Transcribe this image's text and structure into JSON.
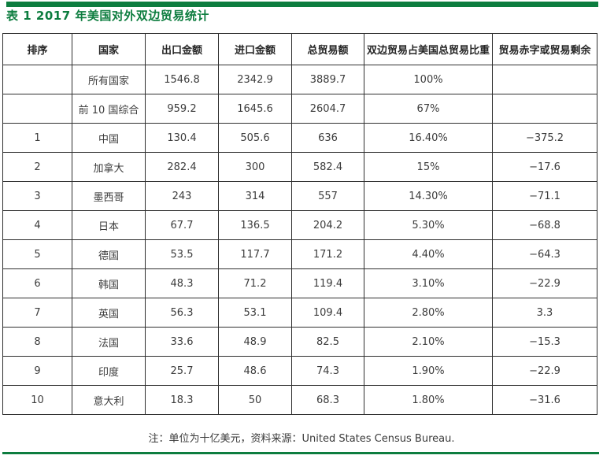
{
  "page": {
    "title": "表 1 2017 年美国对外双边贸易统计",
    "note": "注：单位为十亿美元，资料来源：United States Census Bureau."
  },
  "colors": {
    "accent_green": "#0d7d3f",
    "table_border": "#2f2f2f",
    "body_text": "#3c3c3c"
  },
  "table": {
    "headers": [
      "排序",
      "国家",
      "出口金额",
      "进口金额",
      "总贸易额",
      "双边贸易占美国总贸易比重",
      "贸易赤字或贸易剩余"
    ],
    "rows": [
      {
        "cells": [
          "",
          "所有国家",
          "1546.8",
          "2342.9",
          "3889.7",
          "100%",
          ""
        ]
      },
      {
        "cells": [
          "",
          "前 10 国综合",
          "959.2",
          "1645.6",
          "2604.7",
          "67%",
          ""
        ]
      },
      {
        "cells": [
          "1",
          "中国",
          "130.4",
          "505.6",
          "636",
          "16.40%",
          "−375.2"
        ]
      },
      {
        "cells": [
          "2",
          "加拿大",
          "282.4",
          "300",
          "582.4",
          "15%",
          "−17.6"
        ]
      },
      {
        "cells": [
          "3",
          "墨西哥",
          "243",
          "314",
          "557",
          "14.30%",
          "−71.1"
        ]
      },
      {
        "cells": [
          "4",
          "日本",
          "67.7",
          "136.5",
          "204.2",
          "5.30%",
          "−68.8"
        ]
      },
      {
        "cells": [
          "5",
          "德国",
          "53.5",
          "117.7",
          "171.2",
          "4.40%",
          "−64.3"
        ]
      },
      {
        "cells": [
          "6",
          "韩国",
          "48.3",
          "71.2",
          "119.4",
          "3.10%",
          "−22.9"
        ]
      },
      {
        "cells": [
          "7",
          "英国",
          "56.3",
          "53.1",
          "109.4",
          "2.80%",
          "3.3"
        ]
      },
      {
        "cells": [
          "8",
          "法国",
          "33.6",
          "48.9",
          "82.5",
          "2.10%",
          "−15.3"
        ]
      },
      {
        "cells": [
          "9",
          "印度",
          "25.7",
          "48.6",
          "74.3",
          "1.90%",
          "−22.9"
        ]
      },
      {
        "cells": [
          "10",
          "意大利",
          "18.3",
          "50",
          "68.3",
          "1.80%",
          "−31.6"
        ]
      }
    ]
  }
}
